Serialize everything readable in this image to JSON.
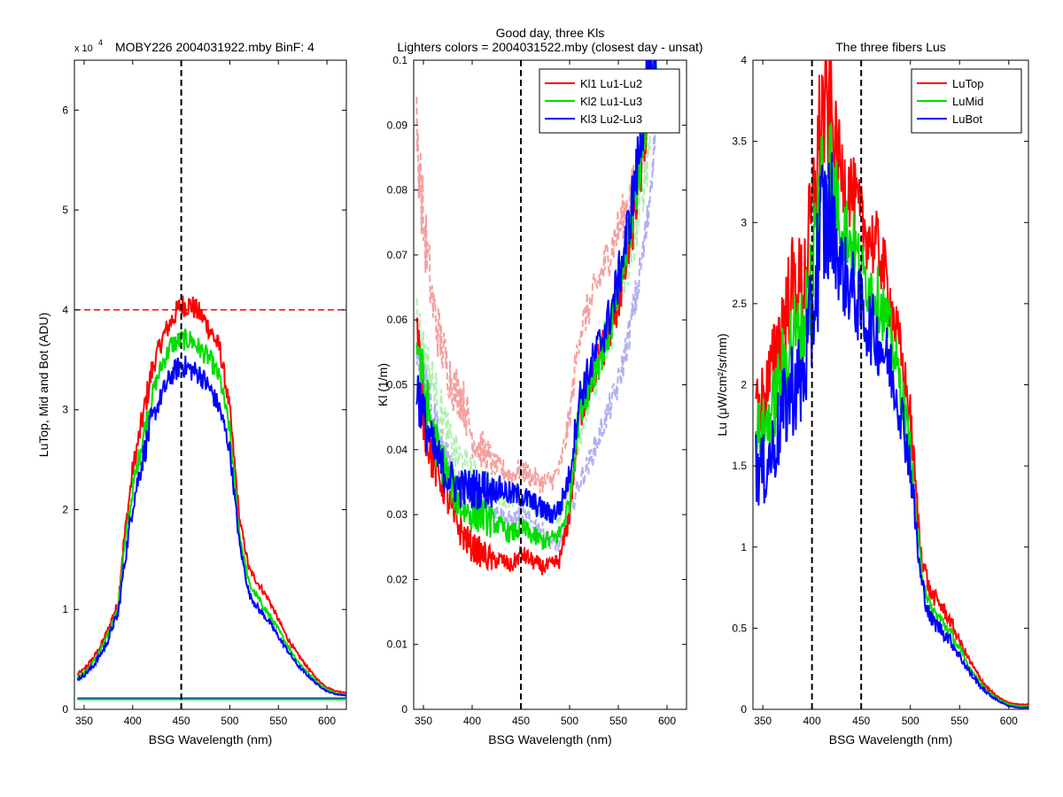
{
  "chart_data": [
    {
      "type": "line",
      "title": "MOBY226  2004031922.mby BinF: 4",
      "exponent_label": "x 10",
      "exponent_power": "4",
      "xlabel": "BSG Wavelength (nm)",
      "ylabel": "LuTop, Mid and Bot (ADU)",
      "xlim": [
        340,
        620
      ],
      "ylim": [
        0,
        65000
      ],
      "x_ticks": [
        350,
        400,
        450,
        500,
        550,
        600
      ],
      "y_ticks": [
        0,
        10000,
        20000,
        30000,
        40000,
        50000,
        60000
      ],
      "y_tick_labels": [
        "0",
        "1",
        "2",
        "3",
        "4",
        "5",
        "6"
      ],
      "vline_x": 450,
      "hline_y": 40000,
      "series": [
        {
          "color": "#ff0000",
          "noise": 0.03,
          "x": [
            343,
            350,
            360,
            365,
            370,
            375,
            380,
            385,
            390,
            395,
            400,
            410,
            420,
            430,
            440,
            450,
            460,
            470,
            480,
            490,
            500,
            510,
            520,
            530,
            540,
            550,
            560,
            570,
            580,
            590,
            600,
            610,
            620
          ],
          "values": [
            3500,
            4000,
            5200,
            6000,
            7000,
            8000,
            9500,
            10500,
            16000,
            20000,
            24000,
            29000,
            34000,
            37000,
            39000,
            40500,
            40500,
            39500,
            38000,
            36000,
            30000,
            19000,
            14000,
            12500,
            11000,
            9000,
            7000,
            5500,
            4200,
            3000,
            2200,
            1800,
            1700
          ]
        },
        {
          "color": "#00dd00",
          "noise": 0.03,
          "x": [
            343,
            350,
            360,
            365,
            370,
            375,
            380,
            385,
            390,
            395,
            400,
            410,
            420,
            430,
            440,
            450,
            460,
            470,
            480,
            490,
            500,
            510,
            520,
            530,
            540,
            550,
            560,
            570,
            580,
            590,
            600,
            610,
            620
          ],
          "values": [
            3200,
            3600,
            4800,
            5600,
            6500,
            7500,
            9000,
            10000,
            15000,
            18500,
            22000,
            27000,
            31500,
            34500,
            36500,
            37000,
            37000,
            36000,
            35000,
            33000,
            28000,
            17500,
            12500,
            11000,
            9500,
            8000,
            6300,
            4800,
            3700,
            2700,
            2000,
            1600,
            1500
          ]
        },
        {
          "color": "#0000ff",
          "noise": 0.035,
          "x": [
            343,
            350,
            360,
            365,
            370,
            375,
            380,
            385,
            390,
            395,
            400,
            410,
            420,
            430,
            440,
            450,
            460,
            470,
            480,
            490,
            500,
            510,
            520,
            530,
            540,
            550,
            560,
            570,
            580,
            590,
            600,
            610,
            620
          ],
          "values": [
            3000,
            3400,
            4400,
            5200,
            6000,
            7000,
            8500,
            9500,
            13500,
            17000,
            20500,
            25000,
            29000,
            31500,
            33500,
            34500,
            34000,
            33500,
            32000,
            30000,
            26000,
            16500,
            11500,
            10000,
            8800,
            7300,
            5800,
            4400,
            3400,
            2500,
            1800,
            1500,
            1400
          ]
        },
        {
          "color": "#0000ff",
          "noise": 0,
          "x": [
            343,
            620
          ],
          "values": [
            1100,
            1100
          ]
        },
        {
          "color": "#00dd00",
          "noise": 0,
          "x": [
            343,
            620
          ],
          "values": [
            1000,
            1000
          ]
        }
      ]
    },
    {
      "type": "line",
      "title": "Good day, three Kls",
      "subtitle": "Lighters colors = 2004031522.mby (closest day - unsat)",
      "xlabel": "BSG Wavelength (nm)",
      "ylabel": "Kl (1/m)",
      "xlim": [
        340,
        620
      ],
      "ylim": [
        0,
        0.1
      ],
      "x_ticks": [
        350,
        400,
        450,
        500,
        550,
        600
      ],
      "y_ticks": [
        0,
        0.01,
        0.02,
        0.03,
        0.04,
        0.05,
        0.06,
        0.07,
        0.08,
        0.09,
        0.1
      ],
      "y_tick_labels": [
        "0",
        "0.01",
        "0.02",
        "0.03",
        "0.04",
        "0.05",
        "0.06",
        "0.07",
        "0.08",
        "0.09",
        "0.1"
      ],
      "vline_x": 450,
      "legend": [
        "Kl1 Lu1-Lu2",
        "Kl2 Lu1-Lu3",
        "Kl3 Lu2-Lu3"
      ],
      "legend_colors": [
        "#ff0000",
        "#00dd00",
        "#0000ff"
      ],
      "legend_position": "top-right",
      "series": [
        {
          "color": "#f4a0a0",
          "dashed": true,
          "noise": 0.05,
          "x": [
            343,
            350,
            360,
            370,
            380,
            390,
            400,
            410,
            420,
            430,
            440,
            450,
            460,
            470,
            480,
            490,
            500,
            510,
            520,
            530,
            540,
            550,
            560,
            570,
            580,
            590
          ],
          "values": [
            0.09,
            0.075,
            0.062,
            0.055,
            0.05,
            0.048,
            0.042,
            0.04,
            0.038,
            0.037,
            0.036,
            0.037,
            0.036,
            0.035,
            0.035,
            0.037,
            0.045,
            0.058,
            0.062,
            0.066,
            0.07,
            0.074,
            0.078,
            0.082,
            0.09,
            0.1
          ]
        },
        {
          "color": "#b0f0b0",
          "dashed": true,
          "noise": 0.05,
          "x": [
            343,
            350,
            360,
            370,
            380,
            390,
            400,
            410,
            420,
            430,
            440,
            450,
            460,
            470,
            480,
            490,
            500,
            510,
            520,
            530,
            540,
            550,
            560,
            570,
            580,
            590
          ],
          "values": [
            0.06,
            0.055,
            0.05,
            0.045,
            0.04,
            0.038,
            0.036,
            0.035,
            0.034,
            0.033,
            0.032,
            0.033,
            0.032,
            0.031,
            0.03,
            0.03,
            0.035,
            0.042,
            0.047,
            0.052,
            0.056,
            0.062,
            0.068,
            0.075,
            0.085,
            0.1
          ]
        },
        {
          "color": "#b0b0f0",
          "dashed": true,
          "noise": 0.05,
          "x": [
            343,
            350,
            360,
            370,
            380,
            390,
            400,
            410,
            420,
            430,
            440,
            450,
            460,
            470,
            480,
            490,
            500,
            510,
            520,
            530,
            540,
            550,
            560,
            570,
            580,
            590
          ],
          "values": [
            0.055,
            0.05,
            0.045,
            0.04,
            0.036,
            0.034,
            0.033,
            0.032,
            0.031,
            0.03,
            0.029,
            0.03,
            0.029,
            0.028,
            0.026,
            0.025,
            0.03,
            0.035,
            0.038,
            0.042,
            0.046,
            0.05,
            0.057,
            0.065,
            0.075,
            0.095
          ]
        },
        {
          "color": "#ff0000",
          "noise": 0.06,
          "x": [
            343,
            350,
            360,
            370,
            380,
            390,
            400,
            410,
            420,
            430,
            440,
            450,
            460,
            470,
            480,
            490,
            500,
            510,
            520,
            530,
            540,
            550,
            560,
            570,
            580,
            590
          ],
          "values": [
            0.06,
            0.045,
            0.038,
            0.035,
            0.03,
            0.027,
            0.025,
            0.024,
            0.023,
            0.023,
            0.022,
            0.024,
            0.023,
            0.022,
            0.022,
            0.023,
            0.03,
            0.045,
            0.05,
            0.054,
            0.058,
            0.063,
            0.07,
            0.08,
            0.092,
            0.1
          ]
        },
        {
          "color": "#00dd00",
          "noise": 0.06,
          "x": [
            343,
            350,
            360,
            370,
            380,
            390,
            400,
            410,
            420,
            430,
            440,
            450,
            460,
            470,
            480,
            490,
            500,
            510,
            520,
            530,
            540,
            550,
            560,
            570,
            580,
            590
          ],
          "values": [
            0.058,
            0.05,
            0.042,
            0.038,
            0.034,
            0.031,
            0.03,
            0.03,
            0.029,
            0.028,
            0.027,
            0.028,
            0.027,
            0.026,
            0.026,
            0.027,
            0.032,
            0.046,
            0.05,
            0.054,
            0.058,
            0.064,
            0.072,
            0.082,
            0.094,
            0.1
          ]
        },
        {
          "color": "#0000ff",
          "noise": 0.06,
          "x": [
            343,
            350,
            360,
            370,
            380,
            390,
            400,
            410,
            420,
            430,
            440,
            450,
            460,
            470,
            480,
            490,
            500,
            510,
            520,
            530,
            540,
            550,
            560,
            570,
            580,
            590
          ],
          "values": [
            0.05,
            0.045,
            0.04,
            0.037,
            0.035,
            0.034,
            0.034,
            0.034,
            0.034,
            0.034,
            0.033,
            0.033,
            0.032,
            0.031,
            0.03,
            0.031,
            0.036,
            0.048,
            0.052,
            0.056,
            0.06,
            0.066,
            0.074,
            0.084,
            0.097,
            0.1
          ]
        }
      ]
    },
    {
      "type": "line",
      "title": "The three fibers Lus",
      "xlabel": "BSG Wavelength (nm)",
      "ylabel": "Lu (μW/cm²/sr/nm)",
      "xlim": [
        340,
        620
      ],
      "ylim": [
        0,
        4
      ],
      "x_ticks": [
        350,
        400,
        450,
        500,
        550,
        600
      ],
      "y_ticks": [
        0,
        0.5,
        1,
        1.5,
        2,
        2.5,
        3,
        3.5,
        4
      ],
      "y_tick_labels": [
        "0",
        "0.5",
        "1",
        "1.5",
        "2",
        "2.5",
        "3",
        "3.5",
        "4"
      ],
      "vline_x": 450,
      "vline2_x": 400,
      "legend": [
        "LuTop",
        "LuMid",
        "LuBot"
      ],
      "legend_colors": [
        "#ff0000",
        "#00dd00",
        "#0000ff"
      ],
      "legend_position": "top-right",
      "series": [
        {
          "color": "#ff0000",
          "noise": 0.08,
          "x": [
            343,
            350,
            360,
            370,
            380,
            390,
            400,
            410,
            420,
            430,
            440,
            450,
            460,
            470,
            480,
            490,
            500,
            510,
            520,
            530,
            540,
            550,
            560,
            570,
            580,
            590,
            600,
            610,
            620
          ],
          "values": [
            1.9,
            1.9,
            2.1,
            2.4,
            2.6,
            2.6,
            3.0,
            3.7,
            3.6,
            3.3,
            3.2,
            3.0,
            2.9,
            2.8,
            2.5,
            2.2,
            1.8,
            1.0,
            0.72,
            0.65,
            0.55,
            0.42,
            0.3,
            0.2,
            0.12,
            0.07,
            0.04,
            0.03,
            0.03
          ]
        },
        {
          "color": "#00dd00",
          "noise": 0.08,
          "x": [
            343,
            350,
            360,
            370,
            380,
            390,
            400,
            410,
            420,
            430,
            440,
            450,
            460,
            470,
            480,
            490,
            500,
            510,
            520,
            530,
            540,
            550,
            560,
            570,
            580,
            590,
            600,
            610,
            620
          ],
          "values": [
            1.7,
            1.7,
            1.85,
            2.1,
            2.3,
            2.3,
            2.7,
            3.3,
            3.3,
            3.0,
            2.9,
            2.7,
            2.6,
            2.5,
            2.3,
            2.0,
            1.6,
            0.9,
            0.62,
            0.56,
            0.48,
            0.37,
            0.26,
            0.17,
            0.1,
            0.06,
            0.03,
            0.02,
            0.02
          ]
        },
        {
          "color": "#0000ff",
          "noise": 0.1,
          "x": [
            343,
            350,
            360,
            370,
            380,
            390,
            400,
            410,
            420,
            430,
            440,
            450,
            460,
            470,
            480,
            490,
            500,
            510,
            520,
            530,
            540,
            550,
            560,
            570,
            580,
            590,
            600,
            610,
            620
          ],
          "values": [
            1.5,
            1.45,
            1.6,
            1.8,
            2.0,
            2.0,
            2.4,
            3.0,
            3.0,
            2.7,
            2.6,
            2.45,
            2.35,
            2.25,
            2.1,
            1.85,
            1.5,
            0.82,
            0.56,
            0.5,
            0.43,
            0.33,
            0.23,
            0.15,
            0.09,
            0.05,
            0.02,
            0.01,
            0.01
          ]
        }
      ]
    }
  ]
}
